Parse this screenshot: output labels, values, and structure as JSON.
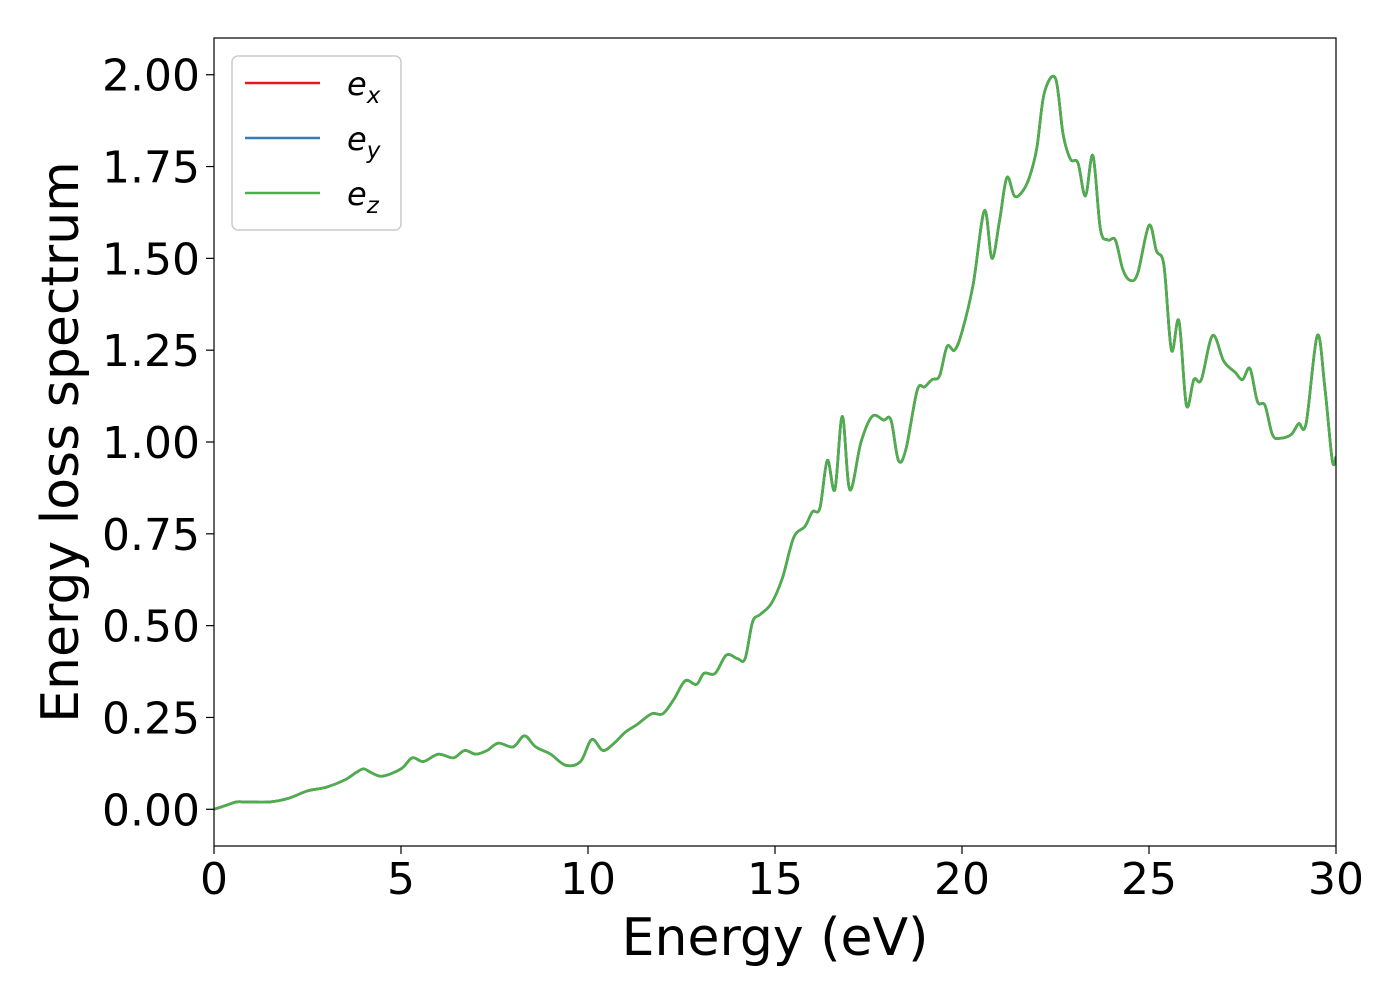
{
  "chart_data": {
    "type": "line",
    "title": "",
    "xlabel": "Energy (eV)",
    "ylabel": "Energy loss spectrum",
    "xlim": [
      0,
      30
    ],
    "ylim": [
      -0.1,
      2.1
    ],
    "xticks": [
      0,
      5,
      10,
      15,
      20,
      25,
      30
    ],
    "xtick_labels": [
      "0",
      "5",
      "10",
      "15",
      "20",
      "25",
      "30"
    ],
    "yticks": [
      0.0,
      0.25,
      0.5,
      0.75,
      1.0,
      1.25,
      1.5,
      1.75,
      2.0
    ],
    "ytick_labels": [
      "0.00",
      "0.25",
      "0.50",
      "0.75",
      "1.00",
      "1.25",
      "1.50",
      "1.75",
      "2.00"
    ],
    "grid": false,
    "legend": "top-left",
    "series": [
      {
        "name": "e",
        "subscript": "x",
        "color": "#e41a1c"
      },
      {
        "name": "e",
        "subscript": "y",
        "color": "#377eb8"
      },
      {
        "name": "e",
        "subscript": "z",
        "color": "#4daf4a"
      }
    ],
    "x": [
      0.0,
      0.3,
      0.6,
      0.8,
      1.0,
      1.5,
      2.0,
      2.5,
      3.0,
      3.5,
      3.8,
      4.0,
      4.2,
      4.5,
      5.0,
      5.3,
      5.6,
      6.0,
      6.4,
      6.7,
      7.0,
      7.3,
      7.6,
      8.0,
      8.3,
      8.6,
      9.0,
      9.4,
      9.8,
      10.1,
      10.4,
      10.7,
      11.0,
      11.3,
      11.7,
      12.0,
      12.3,
      12.6,
      12.9,
      13.1,
      13.4,
      13.7,
      14.0,
      14.2,
      14.4,
      14.6,
      14.9,
      15.2,
      15.5,
      15.8,
      16.0,
      16.2,
      16.4,
      16.6,
      16.8,
      17.0,
      17.3,
      17.6,
      17.9,
      18.1,
      18.3,
      18.5,
      18.8,
      19.0,
      19.2,
      19.4,
      19.6,
      19.8,
      20.0,
      20.3,
      20.6,
      20.8,
      21.0,
      21.2,
      21.4,
      21.6,
      21.8,
      22.0,
      22.2,
      22.5,
      22.7,
      22.9,
      23.1,
      23.3,
      23.5,
      23.7,
      23.9,
      24.1,
      24.3,
      24.5,
      24.7,
      25.0,
      25.2,
      25.4,
      25.6,
      25.8,
      26.0,
      26.2,
      26.4,
      26.7,
      27.0,
      27.3,
      27.5,
      27.7,
      27.9,
      28.1,
      28.3,
      28.5,
      28.8,
      29.0,
      29.2,
      29.5,
      29.7,
      29.9,
      30.0
    ],
    "y": [
      0.0,
      0.01,
      0.02,
      0.02,
      0.02,
      0.02,
      0.03,
      0.05,
      0.06,
      0.08,
      0.1,
      0.11,
      0.1,
      0.09,
      0.11,
      0.14,
      0.13,
      0.15,
      0.14,
      0.16,
      0.15,
      0.16,
      0.18,
      0.17,
      0.2,
      0.17,
      0.15,
      0.12,
      0.13,
      0.19,
      0.16,
      0.18,
      0.21,
      0.23,
      0.26,
      0.26,
      0.3,
      0.35,
      0.34,
      0.37,
      0.37,
      0.42,
      0.41,
      0.41,
      0.51,
      0.53,
      0.56,
      0.63,
      0.74,
      0.77,
      0.81,
      0.82,
      0.95,
      0.87,
      1.07,
      0.87,
      1.0,
      1.07,
      1.06,
      1.06,
      0.95,
      0.98,
      1.14,
      1.15,
      1.17,
      1.18,
      1.26,
      1.25,
      1.3,
      1.43,
      1.63,
      1.5,
      1.6,
      1.72,
      1.67,
      1.68,
      1.72,
      1.8,
      1.95,
      1.99,
      1.84,
      1.77,
      1.76,
      1.67,
      1.78,
      1.58,
      1.55,
      1.55,
      1.47,
      1.44,
      1.46,
      1.59,
      1.52,
      1.48,
      1.25,
      1.33,
      1.1,
      1.17,
      1.17,
      1.29,
      1.22,
      1.19,
      1.17,
      1.2,
      1.11,
      1.1,
      1.02,
      1.01,
      1.02,
      1.05,
      1.05,
      1.29,
      1.15,
      0.95,
      0.96
    ]
  }
}
